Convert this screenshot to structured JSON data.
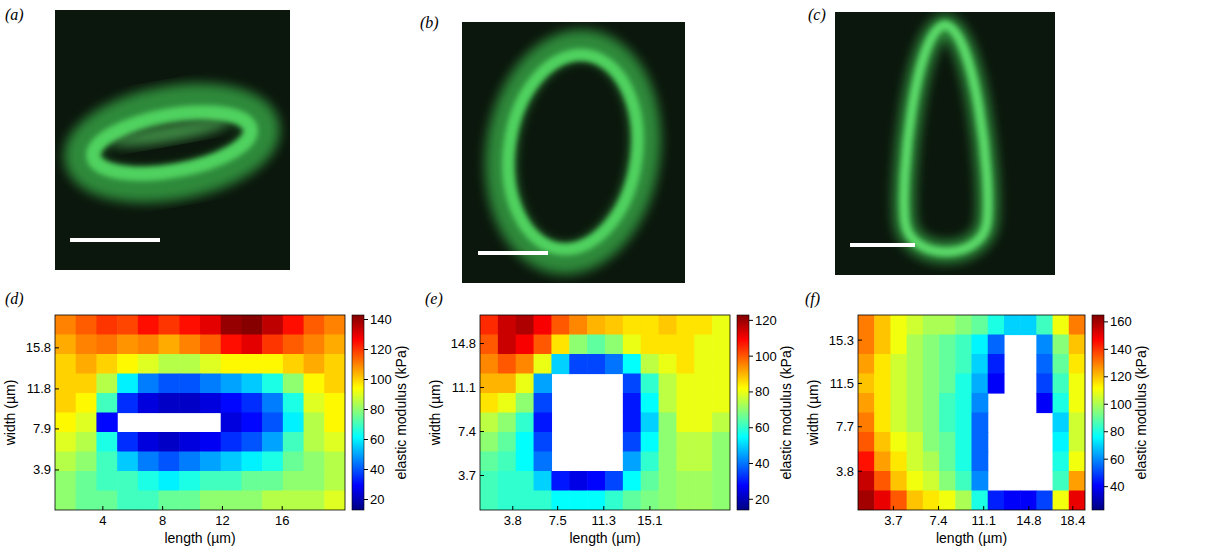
{
  "images": [
    {
      "panel": "(a)"
    },
    {
      "panel": "(b)"
    },
    {
      "panel": "(c)"
    }
  ],
  "chart_data": [
    {
      "type": "heatmap",
      "panel": "(d)",
      "xlabel": "length (µm)",
      "ylabel": "width (µm)",
      "xlim": [
        0.8,
        20.2
      ],
      "xticks": [
        4,
        8,
        12,
        16
      ],
      "ylim": [
        0,
        19
      ],
      "yticks": [
        3.9,
        7.9,
        11.8,
        15.8
      ],
      "colorbar_label": "elastic modulus (kPa)",
      "clim": [
        13,
        143
      ],
      "cticks": [
        20,
        40,
        60,
        80,
        100,
        120,
        140
      ],
      "cells": [
        [
          110,
          115,
          120,
          118,
          125,
          120,
          125,
          130,
          140,
          142,
          135,
          125,
          115,
          110
        ],
        [
          105,
          110,
          112,
          108,
          110,
          105,
          110,
          115,
          125,
          130,
          120,
          115,
          110,
          105
        ],
        [
          100,
          105,
          100,
          95,
          90,
          85,
          85,
          90,
          95,
          95,
          95,
          100,
          105,
          100
        ],
        [
          100,
          100,
          85,
          60,
          45,
          40,
          40,
          45,
          50,
          55,
          65,
          80,
          95,
          100
        ],
        [
          100,
          95,
          70,
          35,
          25,
          22,
          22,
          25,
          30,
          35,
          45,
          65,
          90,
          95
        ],
        [
          95,
          90,
          30,
          null,
          null,
          null,
          null,
          null,
          25,
          30,
          40,
          60,
          85,
          95
        ],
        [
          90,
          85,
          65,
          35,
          25,
          22,
          25,
          28,
          35,
          40,
          50,
          70,
          85,
          90
        ],
        [
          85,
          80,
          70,
          55,
          45,
          40,
          45,
          50,
          55,
          60,
          65,
          75,
          80,
          85
        ],
        [
          80,
          75,
          70,
          70,
          65,
          60,
          65,
          70,
          70,
          75,
          75,
          80,
          80,
          85
        ],
        [
          80,
          75,
          75,
          70,
          70,
          75,
          75,
          80,
          80,
          80,
          85,
          85,
          85,
          90
        ]
      ]
    },
    {
      "type": "heatmap",
      "panel": "(e)",
      "xlabel": "length (µm)",
      "ylabel": "width (µm)",
      "xlim": [
        1.1,
        21.7
      ],
      "xticks": [
        3.8,
        7.5,
        11.3,
        15.1
      ],
      "ylim": [
        0.8,
        17.2
      ],
      "yticks": [
        3.7,
        7.4,
        11.1,
        14.8
      ],
      "colorbar_label": "elastic modulus (kPa)",
      "clim": [
        14,
        123
      ],
      "cticks": [
        20,
        40,
        60,
        80,
        100,
        120
      ],
      "cells": [
        [
          105,
          115,
          118,
          110,
          100,
          95,
          90,
          88,
          85,
          85,
          88,
          85,
          85,
          80
        ],
        [
          100,
          115,
          110,
          100,
          85,
          70,
          65,
          70,
          80,
          85,
          85,
          85,
          80,
          80
        ],
        [
          95,
          100,
          95,
          80,
          50,
          35,
          35,
          40,
          55,
          75,
          80,
          85,
          80,
          80
        ],
        [
          90,
          90,
          80,
          45,
          null,
          null,
          null,
          null,
          35,
          60,
          75,
          80,
          80,
          80
        ],
        [
          85,
          80,
          70,
          35,
          null,
          null,
          null,
          null,
          30,
          55,
          75,
          80,
          80,
          80
        ],
        [
          75,
          70,
          60,
          30,
          null,
          null,
          null,
          null,
          30,
          50,
          70,
          80,
          80,
          75
        ],
        [
          70,
          65,
          55,
          35,
          null,
          null,
          null,
          null,
          35,
          55,
          70,
          75,
          75,
          70
        ],
        [
          65,
          62,
          55,
          40,
          null,
          null,
          null,
          null,
          45,
          60,
          70,
          75,
          75,
          70
        ],
        [
          62,
          60,
          60,
          50,
          30,
          25,
          28,
          35,
          55,
          65,
          70,
          72,
          72,
          70
        ],
        [
          62,
          60,
          60,
          60,
          55,
          55,
          55,
          60,
          65,
          68,
          70,
          72,
          72,
          70
        ]
      ]
    },
    {
      "type": "heatmap",
      "panel": "(f)",
      "xlabel": "length (µm)",
      "ylabel": "width (µm)",
      "xlim": [
        0.8,
        19.4
      ],
      "xticks": [
        3.7,
        7.4,
        11.1,
        14.8,
        18.4
      ],
      "ylim": [
        0.4,
        17.5
      ],
      "yticks": [
        3.8,
        7.7,
        11.5,
        15.3
      ],
      "colorbar_label": "elastic modulus (kPa)",
      "clim": [
        23,
        165
      ],
      "cticks": [
        40,
        60,
        80,
        100,
        120,
        140,
        160
      ],
      "cells": [
        [
          130,
          120,
          110,
          105,
          100,
          100,
          95,
          90,
          80,
          70,
          70,
          85,
          110,
          130
        ],
        [
          130,
          120,
          110,
          100,
          95,
          90,
          85,
          75,
          55,
          null,
          null,
          60,
          95,
          120
        ],
        [
          125,
          115,
          105,
          100,
          95,
          90,
          85,
          70,
          45,
          null,
          null,
          55,
          90,
          115
        ],
        [
          120,
          115,
          105,
          100,
          95,
          90,
          80,
          65,
          40,
          null,
          null,
          50,
          85,
          110
        ],
        [
          125,
          115,
          105,
          100,
          95,
          85,
          80,
          60,
          null,
          null,
          null,
          40,
          80,
          110
        ],
        [
          130,
          115,
          105,
          100,
          95,
          85,
          80,
          55,
          null,
          null,
          null,
          null,
          70,
          105
        ],
        [
          135,
          120,
          110,
          105,
          95,
          90,
          80,
          55,
          null,
          null,
          null,
          null,
          75,
          105
        ],
        [
          145,
          125,
          115,
          105,
          100,
          90,
          80,
          55,
          null,
          null,
          null,
          null,
          80,
          110
        ],
        [
          155,
          135,
          120,
          110,
          105,
          95,
          85,
          60,
          null,
          null,
          null,
          null,
          85,
          125
        ],
        [
          160,
          150,
          135,
          120,
          115,
          110,
          100,
          80,
          45,
          40,
          40,
          50,
          110,
          150
        ]
      ]
    }
  ]
}
